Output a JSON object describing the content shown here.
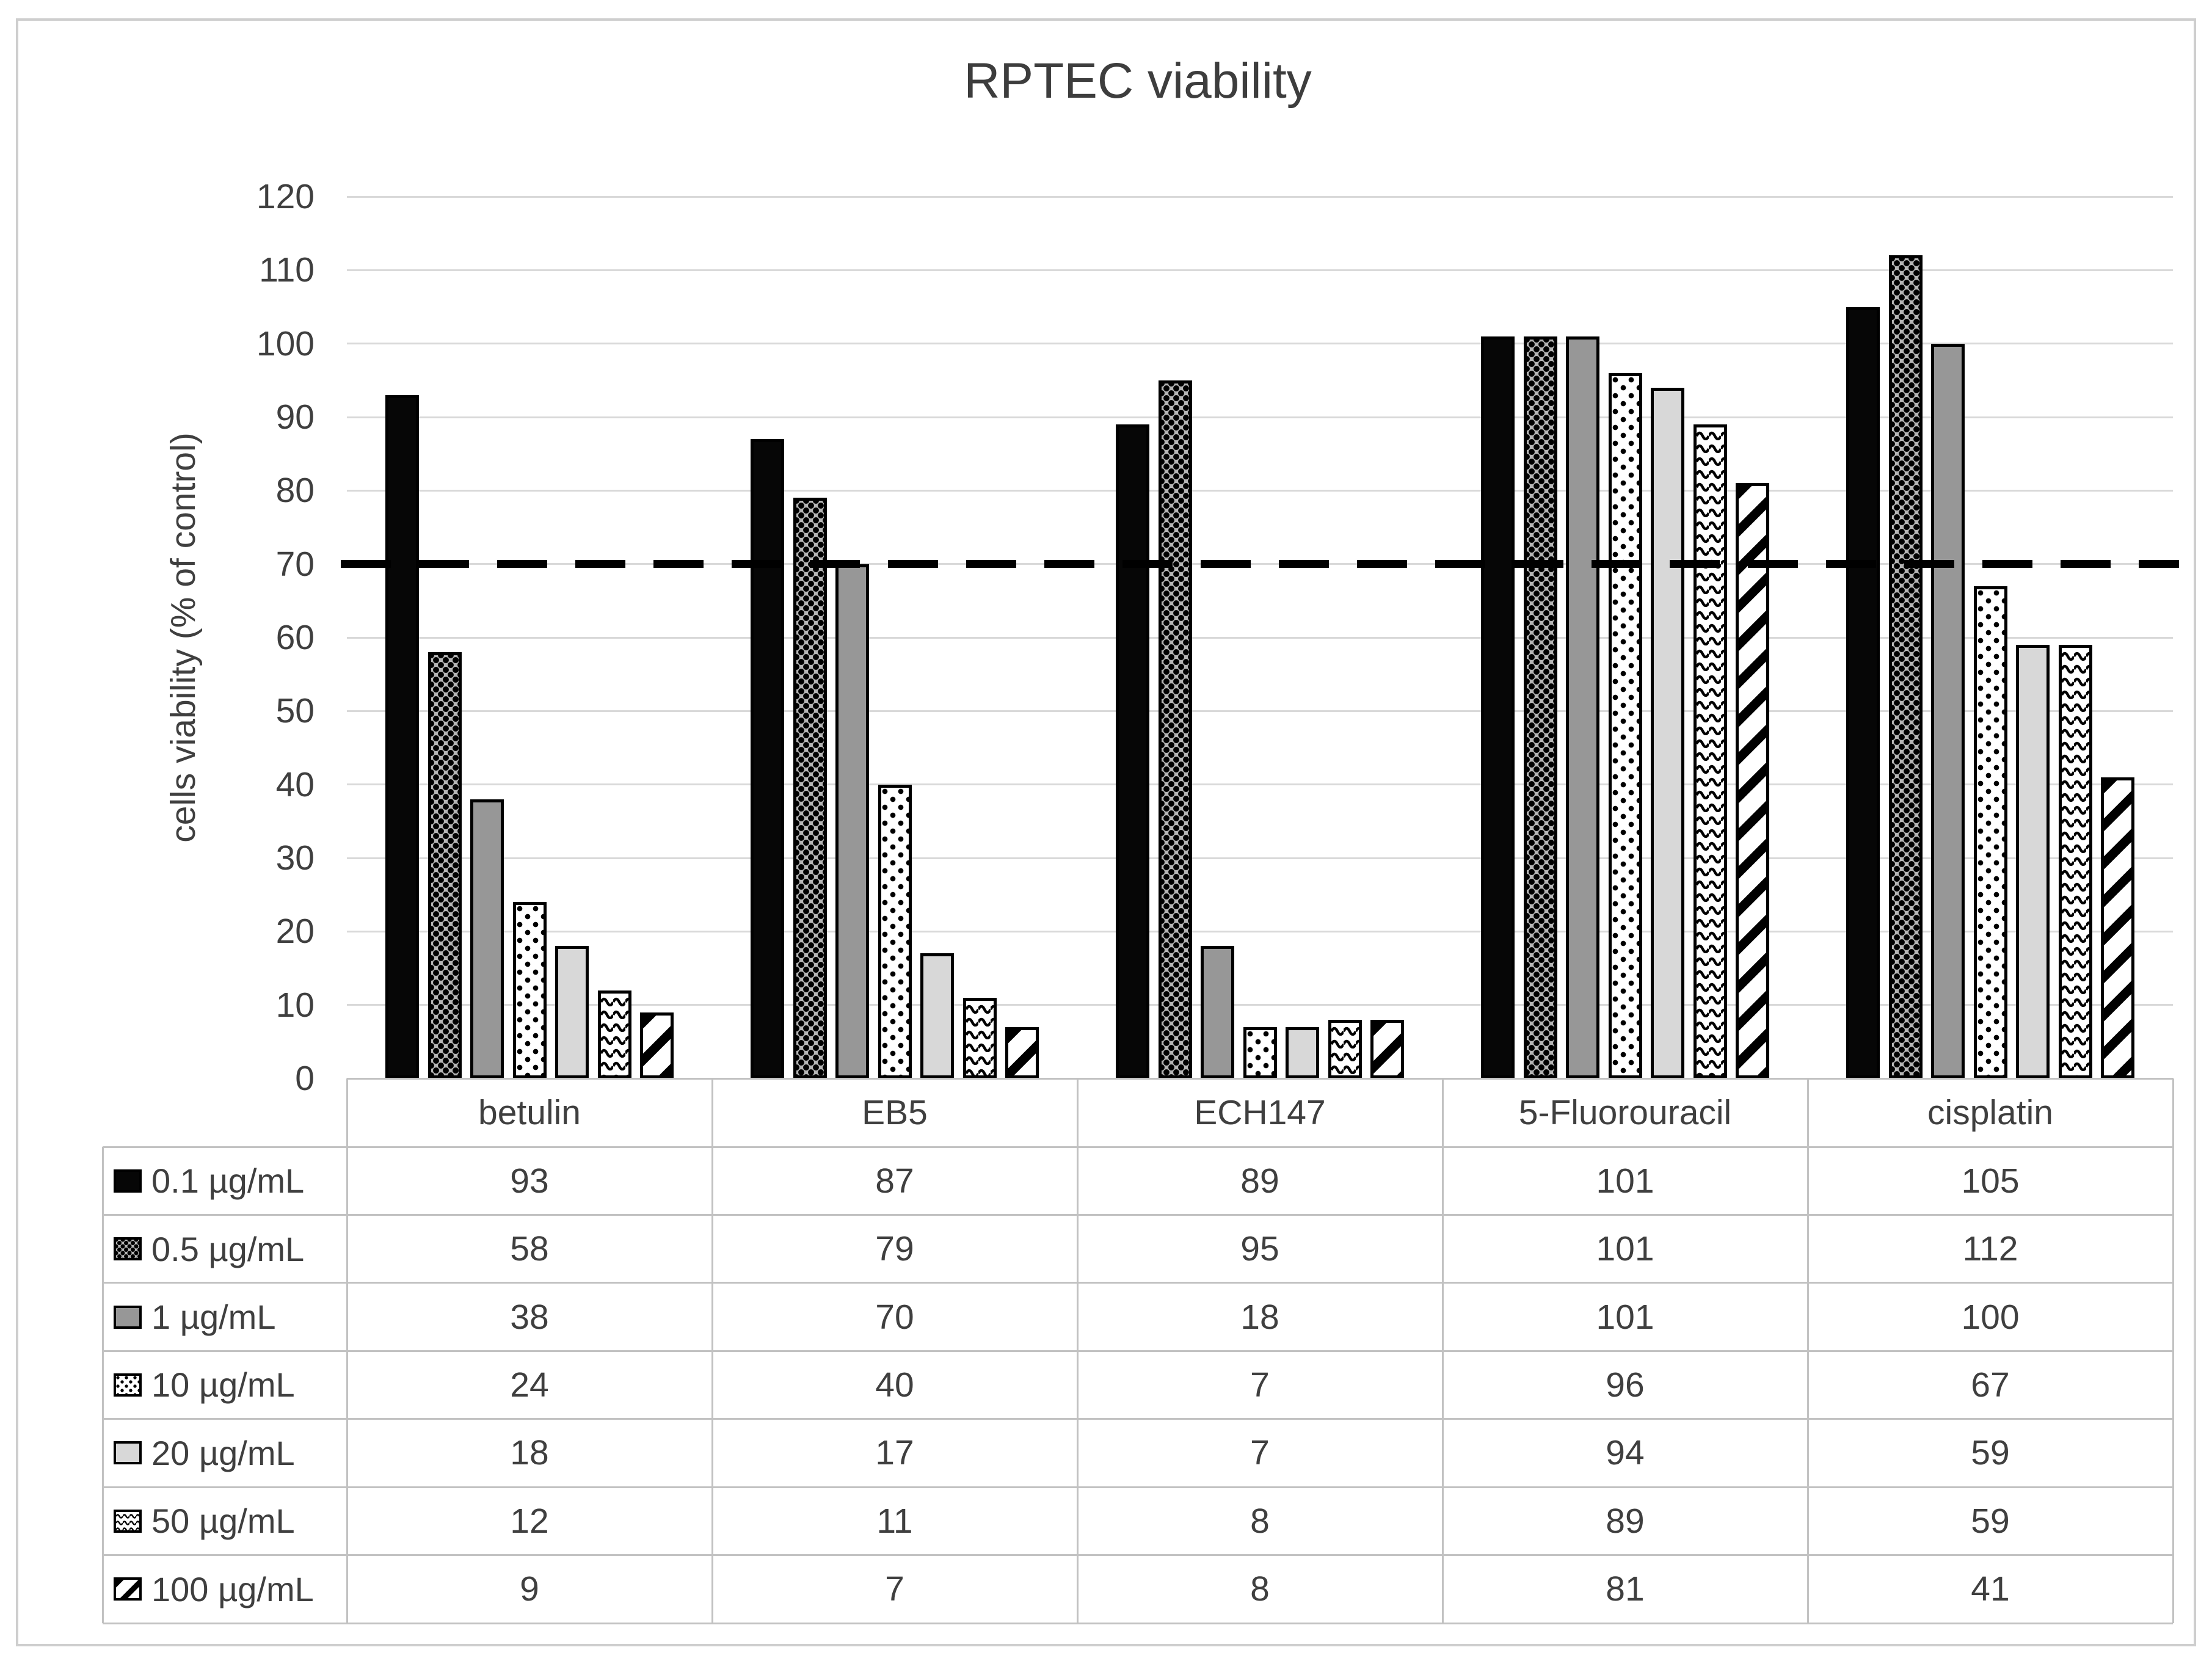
{
  "chart_data": {
    "type": "bar",
    "title": "RPTEC viability",
    "ylabel": "cells viability (% of control)",
    "ylim": [
      0,
      120
    ],
    "ytick_step": 10,
    "yticks": [
      0,
      10,
      20,
      30,
      40,
      50,
      60,
      70,
      80,
      90,
      100,
      110,
      120
    ],
    "grid": "horizontal-gridlines-only",
    "legend_position": "data-table-left-column",
    "reference_line": {
      "y": 70,
      "style": "dashed",
      "color": "#000000"
    },
    "categories": [
      "betulin",
      "EB5",
      "ECH147",
      "5-Fluorouracil",
      "cisplatin"
    ],
    "series": [
      {
        "name": "0.1 µg/mL",
        "pattern": "solid-black",
        "values": [
          93,
          87,
          89,
          101,
          105
        ]
      },
      {
        "name": "0.5 µg/mL",
        "pattern": "dotted-diamond",
        "values": [
          58,
          79,
          95,
          101,
          112
        ]
      },
      {
        "name": "1 µg/mL",
        "pattern": "solid-gray",
        "values": [
          38,
          70,
          18,
          101,
          100
        ]
      },
      {
        "name": "10 µg/mL",
        "pattern": "sparse-dots",
        "values": [
          24,
          40,
          7,
          96,
          67
        ]
      },
      {
        "name": "20 µg/mL",
        "pattern": "light-gray",
        "values": [
          18,
          17,
          7,
          94,
          59
        ]
      },
      {
        "name": "50 µg/mL",
        "pattern": "waves",
        "values": [
          12,
          11,
          8,
          89,
          59
        ]
      },
      {
        "name": "100 µg/mL",
        "pattern": "diagonal-stripes",
        "values": [
          9,
          7,
          8,
          81,
          41
        ]
      }
    ],
    "colors": {
      "text": "#3f3f3f",
      "gridline": "#d9d9d9",
      "table_border": "#c2c2c2",
      "reference_line": "#000000",
      "bar_black": "#060606",
      "bar_gray": "#979797",
      "bar_light_gray": "#d8d8d8",
      "dotted_diamond_bg": "#b5b5b5"
    }
  }
}
